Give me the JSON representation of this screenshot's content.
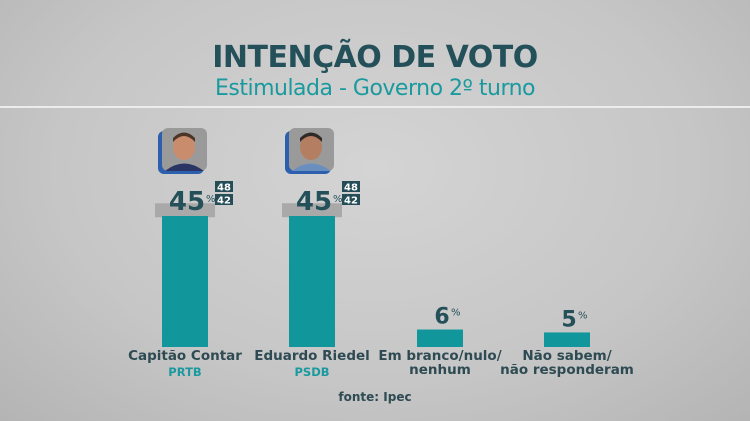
{
  "header": {
    "title": "INTENÇÃO DE VOTO",
    "subtitle": "Estimulada - Governo 2º turno"
  },
  "source": "fonte: Ipec",
  "colors": {
    "bar": "#11979b",
    "title": "#24505a",
    "accent": "#1a9a9e",
    "margin_band": "#a9a9a9",
    "badge": "#244d57"
  },
  "chart_data": {
    "type": "bar",
    "title": "INTENÇÃO DE VOTO",
    "subtitle": "Estimulada - Governo 2º turno",
    "categories": [
      "Capitão Contar",
      "Eduardo Riedel",
      "Em branco/nulo/ nenhum",
      "Não sabem/ não responderam"
    ],
    "category_lines": [
      [
        "Capitão Contar"
      ],
      [
        "Eduardo Riedel"
      ],
      [
        "Em branco/nulo/",
        "nenhum"
      ],
      [
        "Não sabem/",
        "não responderam"
      ]
    ],
    "parties": [
      "PRTB",
      "PSDB",
      "",
      ""
    ],
    "values": [
      45,
      45,
      6,
      5
    ],
    "unit": "%",
    "margin_upper": [
      48,
      48,
      null,
      null
    ],
    "margin_lower": [
      42,
      42,
      null,
      null
    ],
    "photo": [
      true,
      true,
      false,
      false
    ],
    "ylim": [
      0,
      50
    ],
    "grid": false,
    "legend": "none"
  }
}
